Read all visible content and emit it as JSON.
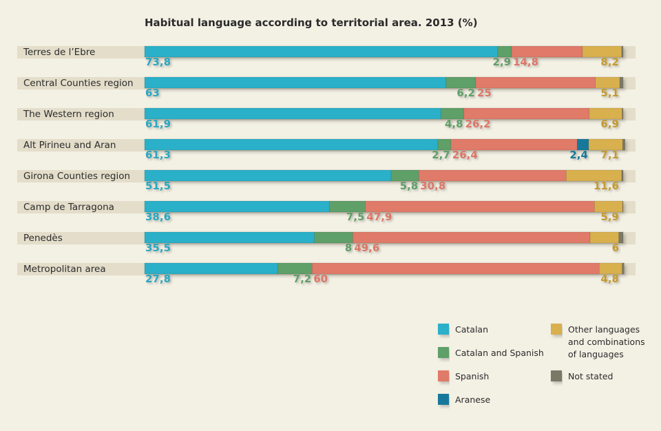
{
  "chart_data": {
    "type": "bar",
    "orientation": "horizontal",
    "stacked": true,
    "title": "Habitual language according to territorial area. 2013 (%)",
    "categories": [
      "Terres de l’Ebre",
      "Central Counties region",
      "The Western region",
      "Alt Pirineu and Aran",
      "Girona Counties region",
      "Camp de Tarragona",
      "Penedès",
      "Metropolitan area"
    ],
    "series": [
      {
        "name": "Catalan",
        "color": "#2bb0c8",
        "values": [
          73.8,
          63,
          61.9,
          61.3,
          51.5,
          38.6,
          35.5,
          27.8
        ],
        "labels": [
          "73,8",
          "63",
          "61,9",
          "61,3",
          "51,5",
          "38,6",
          "35,5",
          "27,8"
        ]
      },
      {
        "name": "Catalan and Spanish",
        "color": "#5e9f68",
        "values": [
          2.9,
          6.2,
          4.8,
          2.7,
          5.8,
          7.5,
          8,
          7.2
        ],
        "labels": [
          "2,9",
          "6,2",
          "4,8",
          "2,7",
          "5,8",
          "7,5",
          "8",
          "7,2"
        ]
      },
      {
        "name": "Spanish",
        "color": "#e07a69",
        "values": [
          14.8,
          25,
          26.2,
          26.4,
          30.8,
          47.9,
          49.6,
          60
        ],
        "labels": [
          "14,8",
          "25",
          "26,2",
          "26,4",
          "30,8",
          "47,9",
          "49,6",
          "60"
        ]
      },
      {
        "name": "Aranese",
        "color": "#13799b",
        "values": [
          0,
          0,
          0,
          2.4,
          0,
          0,
          0,
          0
        ],
        "labels": [
          "",
          "",
          "",
          "2,4",
          "",
          "",
          "",
          ""
        ]
      },
      {
        "name": "Other languages and combinations of languages",
        "color": "#d8b04e",
        "values": [
          8.2,
          5.1,
          6.9,
          7.1,
          11.6,
          5.9,
          6,
          4.8
        ],
        "labels": [
          "8,2",
          "5,1",
          "6,9",
          "7,1",
          "11,6",
          "5,9",
          "6",
          "4,8"
        ]
      },
      {
        "name": "Not stated",
        "color": "#7c7867",
        "values": [
          0.3,
          0.7,
          0.2,
          0.5,
          0.3,
          0.1,
          0.9,
          0.4
        ],
        "labels": [
          "",
          "",
          "",
          "",
          "",
          "",
          "",
          ""
        ]
      }
    ],
    "label_colors": {
      "Catalan": "#29a7c1",
      "Catalan and Spanish": "#5e9f68",
      "Spanish": "#dc7667",
      "Aranese": "#13799b",
      "Other languages and combinations of languages": "#c49a2e"
    },
    "xlim": [
      0,
      100
    ],
    "grid": false,
    "legend_position": "bottom-right",
    "legend_items": [
      {
        "name": "Catalan",
        "text": [
          "Catalan"
        ],
        "color": "#2bb0c8"
      },
      {
        "name": "Catalan and Spanish",
        "text": [
          "Catalan and Spanish"
        ],
        "color": "#5e9f68"
      },
      {
        "name": "Spanish",
        "text": [
          "Spanish"
        ],
        "color": "#e07a69"
      },
      {
        "name": "Aranese",
        "text": [
          "Aranese"
        ],
        "color": "#13799b"
      },
      {
        "name": "Other languages and combinations of languages",
        "text": [
          "Other languages",
          "and combinations",
          "of languages"
        ],
        "color": "#d8b04e"
      },
      {
        "name": "Not stated",
        "text": [
          "Not stated"
        ],
        "color": "#7c7867"
      }
    ]
  }
}
